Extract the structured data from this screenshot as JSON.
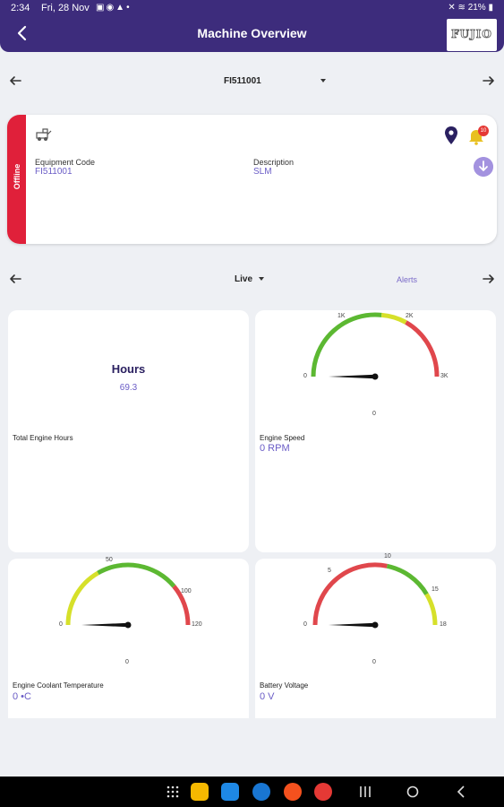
{
  "status_bar": {
    "time": "2:34",
    "date": "Fri, 28 Nov",
    "battery": "21%"
  },
  "header": {
    "title": "Machine Overview",
    "logo_text": "FUJIO"
  },
  "equipment_selector": {
    "value": "FI511001"
  },
  "equipment_card": {
    "status": "Offline",
    "equipment_code_label": "Equipment Code",
    "equipment_code": "FI511001",
    "description_label": "Description",
    "description": "SLM",
    "alert_badge": "10"
  },
  "view_selector": {
    "value": "Live",
    "alerts_label": "Alerts"
  },
  "cards": {
    "hours": {
      "title": "Hours",
      "value": "69.3",
      "label": "Total Engine Hours"
    },
    "engine_speed": {
      "ticks": [
        "0",
        "1K",
        "2K",
        "3K"
      ],
      "center_value": "0",
      "label": "Engine Speed",
      "value": "0 RPM",
      "reading": 0,
      "range": [
        0,
        3000
      ]
    },
    "coolant": {
      "ticks": [
        "0",
        "50",
        "100",
        "120"
      ],
      "center_value": "0",
      "label": "Engine Coolant Temperature",
      "value": "0 •C",
      "reading": 0,
      "range": [
        0,
        120
      ]
    },
    "battery": {
      "ticks": [
        "0",
        "5",
        "10",
        "15",
        "18"
      ],
      "center_value": "0",
      "label": "Battery Voltage",
      "value": "0 V",
      "reading": 0,
      "range": [
        0,
        18
      ]
    }
  },
  "colors": {
    "header": "#3d2c7c",
    "accent": "#6a5cc6",
    "offline": "#e0203a",
    "gauge_green": "#5cb832",
    "gauge_yellow": "#d6e02a",
    "gauge_red": "#e0474c"
  },
  "icons": {
    "back": "arrow-left-icon",
    "pin": "location-pin-icon",
    "bell": "bell-icon",
    "download": "download-icon",
    "machine": "machine-icon"
  }
}
